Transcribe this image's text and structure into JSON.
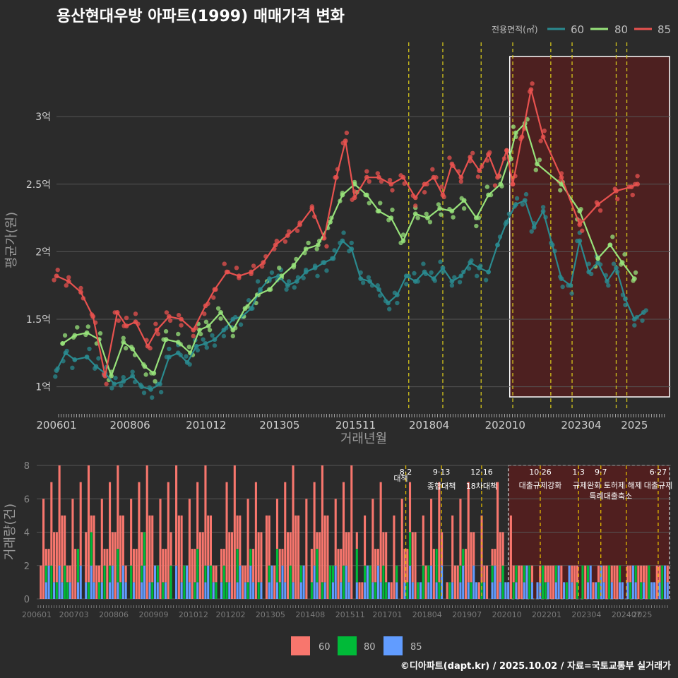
{
  "chart_data": [
    {
      "type": "line",
      "title": "용산현대우방 아파트(1999) 매매가격 변화",
      "xlabel": "거래년월",
      "ylabel": "평균가(원)",
      "legend_title": "전용면적(㎡)",
      "legend_position": "top-right",
      "x_ticks": [
        "200601",
        "200806",
        "201012",
        "201305",
        "201511",
        "201804",
        "202010",
        "202304",
        "2025"
      ],
      "x_tick_years": [
        2006.0,
        2008.417,
        2010.917,
        2013.333,
        2015.833,
        2018.25,
        2020.75,
        2023.25,
        2025.0
      ],
      "y_ticks": [
        "1억",
        "1.5억",
        "2억",
        "2.5억",
        "3억"
      ],
      "y_tick_values": [
        1.0,
        1.5,
        2.0,
        2.5,
        3.0
      ],
      "ylim": [
        0.82,
        3.55
      ],
      "xlim": [
        2006.0,
        2026.2
      ],
      "policy_event_years": [
        2017.58,
        2018.7,
        2019.96,
        2021.0,
        2022.25,
        2022.95,
        2024.4,
        2024.75
      ],
      "highlight_range": [
        2020.9,
        2026.2
      ],
      "series": [
        {
          "name": "60",
          "color": "#2a8a8f",
          "x": [
            2006.0,
            2006.3,
            2006.6,
            2007.0,
            2007.3,
            2007.6,
            2007.9,
            2008.2,
            2008.5,
            2008.8,
            2009.1,
            2009.4,
            2009.7,
            2010.0,
            2010.3,
            2010.6,
            2010.9,
            2011.2,
            2011.5,
            2011.8,
            2012.1,
            2012.4,
            2012.7,
            2013.0,
            2013.3,
            2013.6,
            2013.9,
            2014.2,
            2014.5,
            2014.8,
            2015.1,
            2015.4,
            2015.7,
            2016.0,
            2016.3,
            2016.6,
            2016.9,
            2017.2,
            2017.5,
            2017.8,
            2018.1,
            2018.4,
            2018.7,
            2019.0,
            2019.3,
            2019.6,
            2019.9,
            2020.2,
            2020.5,
            2020.8,
            2021.1,
            2021.4,
            2021.7,
            2022.0,
            2022.3,
            2022.6,
            2022.9,
            2023.2,
            2023.5,
            2023.8,
            2024.1,
            2024.4,
            2024.7,
            2025.0,
            2025.3
          ],
          "values": [
            1.12,
            1.25,
            1.2,
            1.22,
            1.15,
            1.1,
            1.02,
            1.04,
            1.08,
            1.0,
            0.98,
            1.02,
            1.22,
            1.25,
            1.18,
            1.3,
            1.32,
            1.35,
            1.42,
            1.5,
            1.52,
            1.58,
            1.72,
            1.8,
            1.82,
            1.75,
            1.78,
            1.85,
            1.88,
            1.92,
            1.95,
            2.08,
            2.02,
            1.8,
            1.78,
            1.72,
            1.62,
            1.68,
            1.82,
            1.78,
            1.85,
            1.8,
            1.88,
            1.78,
            1.82,
            1.92,
            1.88,
            1.85,
            2.05,
            2.22,
            2.35,
            2.38,
            2.18,
            2.3,
            2.05,
            1.8,
            1.75,
            2.08,
            1.85,
            1.92,
            1.78,
            1.88,
            1.65,
            1.5,
            1.55
          ]
        },
        {
          "name": "80",
          "color": "#98e37b",
          "x": [
            2006.2,
            2006.6,
            2007.0,
            2007.4,
            2007.8,
            2008.2,
            2008.5,
            2008.9,
            2009.2,
            2009.6,
            2010.0,
            2010.4,
            2010.7,
            2011.0,
            2011.4,
            2011.8,
            2012.2,
            2012.6,
            2013.0,
            2013.4,
            2013.8,
            2014.2,
            2014.6,
            2015.0,
            2015.4,
            2015.8,
            2016.2,
            2016.6,
            2017.0,
            2017.4,
            2017.8,
            2018.2,
            2018.6,
            2019.0,
            2019.4,
            2019.8,
            2020.2,
            2020.6,
            2020.9,
            2021.1,
            2021.4,
            2021.8,
            2022.6,
            2023.2,
            2023.8,
            2024.2,
            2024.6,
            2025.0
          ],
          "values": [
            1.32,
            1.38,
            1.4,
            1.35,
            1.08,
            1.33,
            1.28,
            1.15,
            1.1,
            1.35,
            1.33,
            1.25,
            1.42,
            1.45,
            1.55,
            1.42,
            1.58,
            1.68,
            1.72,
            1.82,
            1.9,
            2.02,
            2.05,
            2.22,
            2.42,
            2.5,
            2.42,
            2.3,
            2.25,
            2.08,
            2.28,
            2.25,
            2.32,
            2.3,
            2.38,
            2.25,
            2.42,
            2.5,
            2.7,
            2.88,
            2.95,
            2.65,
            2.5,
            2.3,
            1.95,
            2.05,
            1.92,
            1.8
          ]
        },
        {
          "name": "85",
          "color": "#e8524f",
          "x": [
            2006.0,
            2006.4,
            2006.8,
            2007.2,
            2007.6,
            2008.0,
            2008.3,
            2008.6,
            2009.0,
            2009.3,
            2009.7,
            2010.1,
            2010.5,
            2010.9,
            2011.2,
            2011.6,
            2012.0,
            2012.4,
            2012.8,
            2013.2,
            2013.6,
            2014.0,
            2014.4,
            2014.8,
            2015.2,
            2015.5,
            2015.8,
            2016.2,
            2016.6,
            2017.0,
            2017.4,
            2017.8,
            2018.1,
            2018.4,
            2018.7,
            2019.0,
            2019.3,
            2019.6,
            2019.9,
            2020.2,
            2020.5,
            2020.8,
            2021.0,
            2021.3,
            2021.6,
            2022.0,
            2022.6,
            2023.2,
            2023.8,
            2024.4,
            2024.9,
            2025.1
          ],
          "values": [
            1.82,
            1.78,
            1.7,
            1.52,
            1.08,
            1.55,
            1.45,
            1.48,
            1.3,
            1.42,
            1.52,
            1.5,
            1.42,
            1.6,
            1.72,
            1.85,
            1.82,
            1.85,
            1.92,
            2.05,
            2.12,
            2.2,
            2.32,
            2.1,
            2.55,
            2.82,
            2.4,
            2.55,
            2.55,
            2.5,
            2.55,
            2.4,
            2.5,
            2.55,
            2.42,
            2.65,
            2.55,
            2.7,
            2.6,
            2.72,
            2.55,
            2.75,
            2.5,
            2.85,
            3.2,
            2.85,
            2.55,
            2.2,
            2.35,
            2.45,
            2.48,
            2.5
          ]
        }
      ]
    },
    {
      "type": "bar",
      "ylabel": "거래량(건)",
      "y_ticks": [
        "0",
        "2",
        "4",
        "6",
        "8"
      ],
      "y_tick_values": [
        0,
        2,
        4,
        6,
        8
      ],
      "ylim": [
        0,
        8
      ],
      "x_ticks": [
        "200601",
        "200703",
        "200806",
        "200909",
        "201012",
        "201202",
        "201305",
        "201408",
        "201511",
        "201701",
        "201804",
        "201907",
        "202010",
        "202201",
        "202304",
        "202407",
        "2025"
      ],
      "x_tick_years": [
        2006.0,
        2007.167,
        2008.417,
        2009.667,
        2010.917,
        2012.083,
        2013.333,
        2014.583,
        2015.833,
        2017.0,
        2018.25,
        2019.5,
        2020.75,
        2022.0,
        2023.25,
        2024.5,
        2025.0
      ],
      "policy_events": [
        {
          "date": "8·2",
          "label": "대책",
          "year": 2017.58
        },
        {
          "date": "9·13",
          "label": "종합대책",
          "year": 2018.7
        },
        {
          "date": "12·16",
          "label": "18차대책",
          "year": 2019.96
        },
        {
          "date": "10·26",
          "label": "대출규제강화",
          "year": 2021.8
        },
        {
          "date": "1·3",
          "label": "규제완화",
          "year": 2023.0
        },
        {
          "date": "9·7",
          "label": "특례대출축소",
          "year": 2023.7
        },
        {
          "date": "",
          "label": "토허제 해제",
          "year": 2024.5
        },
        {
          "date": "6·27",
          "label": "대출규제",
          "year": 2025.5
        }
      ],
      "highlight_range": [
        2020.8,
        2025.8
      ],
      "series_names": [
        "60",
        "80",
        "85"
      ],
      "series_colors": [
        "#f8766d",
        "#00ba38",
        "#619cff"
      ]
    }
  ],
  "legend": {
    "items": [
      {
        "name": "60",
        "color": "#f8766d"
      },
      {
        "name": "80",
        "color": "#00ba38"
      },
      {
        "name": "85",
        "color": "#619cff"
      }
    ]
  },
  "footer": "©디아파트(dapt.kr) / 2025.10.02 / 자료=국토교통부 실거래가"
}
